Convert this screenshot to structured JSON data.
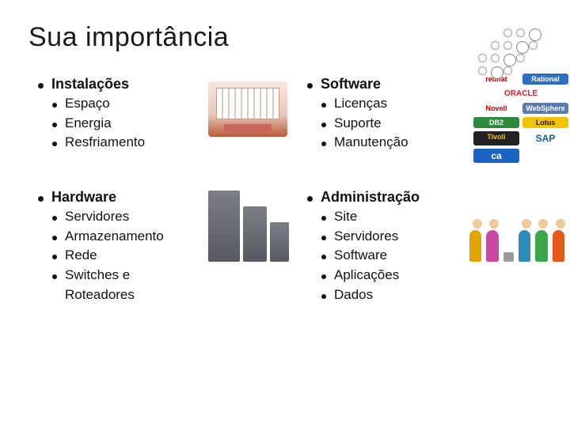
{
  "slide": {
    "title": "Sua importância",
    "title_fontsize": 34,
    "title_color": "#1a1a1a",
    "background_color": "#ffffff",
    "bullet_disc_color": "#111111",
    "body_fontsize": 18,
    "sub_fontsize": 17
  },
  "columns": {
    "topLeft": {
      "heading": "Instalações",
      "items": [
        "Espaço",
        "Energia",
        "Resfriamento"
      ]
    },
    "bottomLeft": {
      "heading": "Hardware",
      "items": [
        "Servidores",
        "Armazenamento",
        "Rede",
        "Switches e Roteadores"
      ]
    },
    "topRight": {
      "heading": "Software",
      "items": [
        "Licenças",
        "Suporte",
        "Manutenção"
      ]
    },
    "bottomRight": {
      "heading": "Administração",
      "items": [
        "Site",
        "Servidores",
        "Software",
        "Aplicações",
        "Dados"
      ]
    }
  },
  "illustrations": {
    "facility": {
      "name": "datacenter-cutaway-icon"
    },
    "servers": {
      "name": "server-racks-icon"
    },
    "software_logos": [
      {
        "label": "redhat",
        "color": "#c40000"
      },
      {
        "label": "Rational",
        "bg": "#2e6fc4"
      },
      {
        "label": "ORACLE",
        "color": "#e21f26"
      },
      {
        "label": "Novell",
        "color": "#c40000"
      },
      {
        "label": "WebSphere",
        "bg": "#5b7aa8"
      },
      {
        "label": "DB2",
        "bg": "#2e8b3d"
      },
      {
        "label": "Lotus",
        "bg": "#f2c400"
      },
      {
        "label": "Tivoli",
        "bg": "#222222"
      },
      {
        "label": "SAP",
        "color": "#0a5ca8"
      },
      {
        "label": "ca",
        "bg": "#1a62c4"
      }
    ],
    "people": {
      "name": "support-team-icon",
      "colors": [
        "#e4a400",
        "#c94aa2",
        "#2c8bb8",
        "#3aa84a",
        "#e45a1a"
      ]
    }
  },
  "decoration": {
    "dot_pattern": {
      "rows": 4,
      "cols": 5,
      "border_color": "#9aa0a6"
    }
  }
}
